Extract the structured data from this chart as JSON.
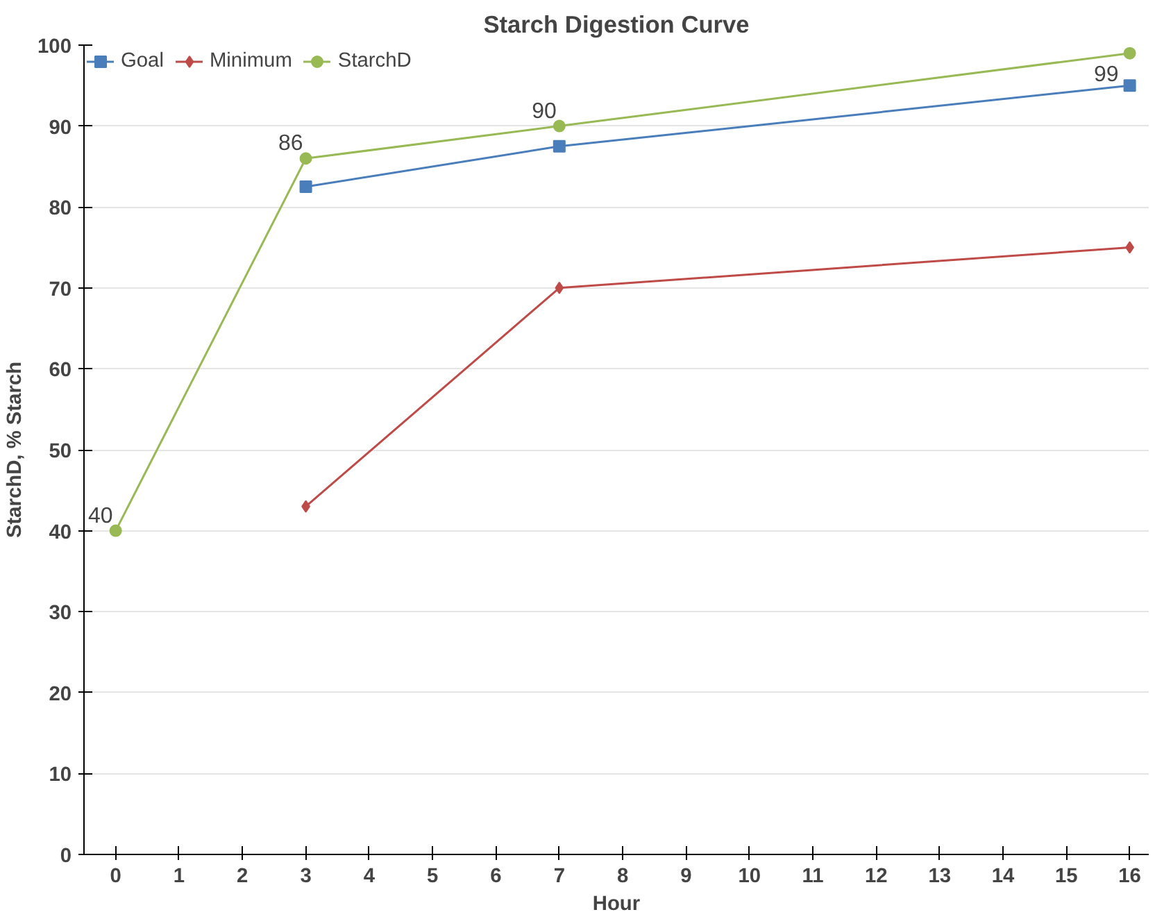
{
  "chart_data": {
    "type": "line",
    "title": "Starch Digestion Curve",
    "xlabel": "Hour",
    "ylabel": "StarchD, % Starch",
    "x": [
      0,
      3,
      7,
      16
    ],
    "series": [
      {
        "name": "Goal",
        "color": "#4a7ebb",
        "marker": "square",
        "values": [
          null,
          82.5,
          87.5,
          95
        ]
      },
      {
        "name": "Minimum",
        "color": "#be4b48",
        "marker": "diamond",
        "values": [
          null,
          43,
          70,
          75
        ]
      },
      {
        "name": "StarchD",
        "color": "#98b954",
        "marker": "circle",
        "values": [
          40,
          86,
          90,
          99
        ],
        "value_labels": [
          "40",
          "86",
          "90",
          "99"
        ]
      }
    ],
    "xlim": [
      -0.5,
      16.3
    ],
    "xticks": [
      0,
      1,
      2,
      3,
      4,
      5,
      6,
      7,
      8,
      9,
      10,
      11,
      12,
      13,
      14,
      15,
      16
    ],
    "ylim": [
      0,
      100
    ],
    "yticks": [
      0,
      10,
      20,
      30,
      40,
      50,
      60,
      70,
      80,
      90,
      100
    ],
    "grid": "y",
    "legend": "top left"
  }
}
